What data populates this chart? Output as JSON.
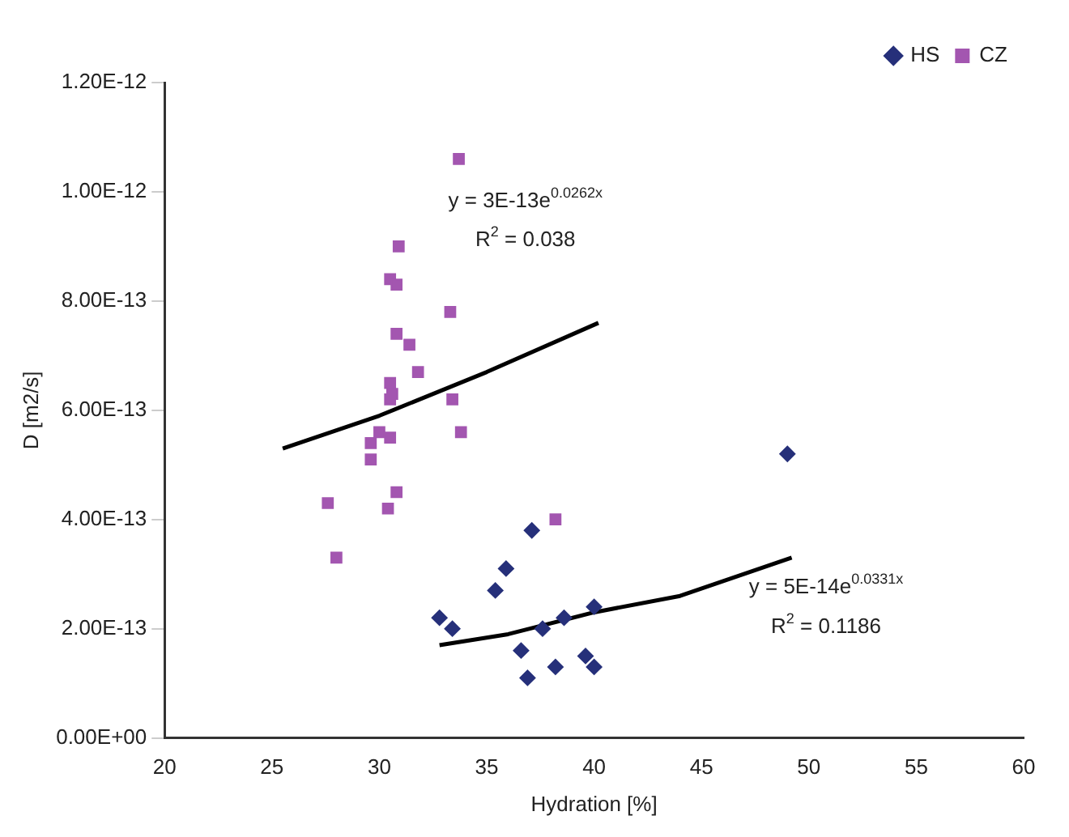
{
  "chart_data": {
    "type": "scatter",
    "xlabel": "Hydration [%]",
    "ylabel": "D [m2/s]",
    "xlim": [
      20,
      60
    ],
    "xticks": [
      20,
      25,
      30,
      35,
      40,
      45,
      50,
      55,
      60
    ],
    "ylim": [
      0,
      1.2e-12
    ],
    "yticks": [
      {
        "value": 0,
        "label": "0.00E+00"
      },
      {
        "value": 2e-13,
        "label": "2.00E-13"
      },
      {
        "value": 4e-13,
        "label": "4.00E-13"
      },
      {
        "value": 6e-13,
        "label": "6.00E-13"
      },
      {
        "value": 8e-13,
        "label": "8.00E-13"
      },
      {
        "value": 1e-12,
        "label": "1.00E-12"
      },
      {
        "value": 1.2e-12,
        "label": "1.20E-12"
      }
    ],
    "grid": false,
    "legend": "top right",
    "series": [
      {
        "name": "HS",
        "marker": "diamond",
        "color": "#26307a",
        "x": [
          37.1,
          35.9,
          35.4,
          32.8,
          33.4,
          36.6,
          36.9,
          37.6,
          38.6,
          40.0,
          38.2,
          39.6,
          40.0,
          49.0
        ],
        "values": [
          3.8e-13,
          3.1e-13,
          2.7e-13,
          2.2e-13,
          2e-13,
          1.6e-13,
          1.1e-13,
          2e-13,
          2.2e-13,
          2.4e-13,
          1.3e-13,
          1.5e-13,
          1.3e-13,
          5.2e-13
        ]
      },
      {
        "name": "CZ",
        "marker": "square",
        "color": "#a356b0",
        "x": [
          33.7,
          30.9,
          30.5,
          30.8,
          33.3,
          30.8,
          31.4,
          31.8,
          30.5,
          30.6,
          30.5,
          33.4,
          33.8,
          30.0,
          30.5,
          29.6,
          29.6,
          30.8,
          30.4,
          27.6,
          28.0,
          38.2
        ],
        "values": [
          1.06e-12,
          9e-13,
          8.4e-13,
          8.3e-13,
          7.8e-13,
          7.4e-13,
          7.2e-13,
          6.7e-13,
          6.5e-13,
          6.3e-13,
          6.2e-13,
          6.2e-13,
          5.6e-13,
          5.6e-13,
          5.5e-13,
          5.4e-13,
          5.1e-13,
          4.5e-13,
          4.2e-13,
          4.3e-13,
          3.3e-13,
          4e-13
        ]
      },
      {
        "type": "line",
        "marker": "none",
        "line_style": "solid",
        "color": "#000000",
        "x": [
          32.8,
          36,
          40,
          44,
          49.2
        ],
        "values": [
          1.7e-13,
          1.9e-13,
          2.3e-13,
          2.6e-13,
          3.3e-13
        ]
      },
      {
        "type": "line",
        "marker": "none",
        "line_style": "solid",
        "color": "#000000",
        "x": [
          25.5,
          30,
          35,
          40.2
        ],
        "values": [
          5.3e-13,
          5.9e-13,
          6.7e-13,
          7.6e-13
        ]
      }
    ],
    "annotations": [
      "y = 3E-13e$^{0.0262x}$",
      "R$^{2}$ = 0.038",
      "y = 5E-14e$^{0.0331x}$",
      "R$^{2}$ = 0.1186"
    ]
  }
}
